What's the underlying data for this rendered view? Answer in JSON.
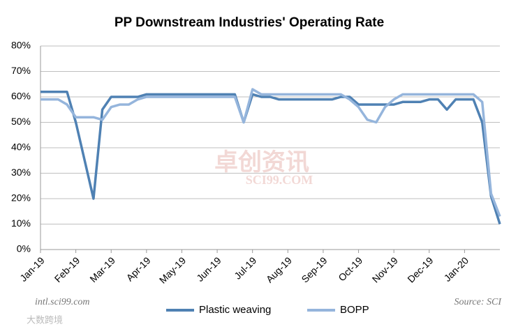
{
  "chart_data": {
    "type": "line",
    "title": "PP Downstream Industries' Operating Rate",
    "categories": [
      "Jan-19",
      null,
      null,
      null,
      "Feb-19",
      null,
      null,
      null,
      "Mar-19",
      null,
      null,
      null,
      "Apr-19",
      null,
      null,
      null,
      "May-19",
      null,
      null,
      null,
      "Jun-19",
      null,
      null,
      null,
      "Jul-19",
      null,
      null,
      null,
      "Aug-19",
      null,
      null,
      null,
      "Sep-19",
      null,
      null,
      null,
      "Oct-19",
      null,
      null,
      null,
      "Nov-19",
      null,
      null,
      null,
      "Dec-19",
      null,
      null,
      null,
      "Jan-20",
      null,
      null,
      null,
      null
    ],
    "series": [
      {
        "name": "Plastic weaving",
        "color": "#4f81b3",
        "values": [
          62,
          62,
          62,
          62,
          50,
          35,
          20,
          55,
          60,
          60,
          60,
          60,
          61,
          61,
          61,
          61,
          61,
          61,
          61,
          61,
          61,
          61,
          61,
          50,
          61,
          60,
          60,
          59,
          59,
          59,
          59,
          59,
          59,
          59,
          60,
          60,
          57,
          57,
          57,
          57,
          57,
          58,
          58,
          58,
          59,
          59,
          55,
          59,
          59,
          59,
          50,
          21,
          10
        ]
      },
      {
        "name": "BOPP",
        "color": "#95b5dc",
        "values": [
          59,
          59,
          59,
          57,
          52,
          52,
          52,
          51,
          56,
          57,
          57,
          59,
          60,
          60,
          60,
          60,
          60,
          60,
          60,
          60,
          60,
          60,
          60,
          50,
          63,
          61,
          61,
          61,
          61,
          61,
          61,
          61,
          61,
          61,
          61,
          59,
          56,
          51,
          50,
          56,
          59,
          61,
          61,
          61,
          61,
          61,
          61,
          61,
          61,
          61,
          58,
          22,
          13
        ]
      }
    ],
    "ylim": [
      0,
      80
    ],
    "yticks": [
      {
        "value": 0,
        "label": "0%"
      },
      {
        "value": 10,
        "label": "10%"
      },
      {
        "value": 20,
        "label": "20%"
      },
      {
        "value": 30,
        "label": "30%"
      },
      {
        "value": 40,
        "label": "40%"
      },
      {
        "value": 50,
        "label": "50%"
      },
      {
        "value": 60,
        "label": "60%"
      },
      {
        "value": 70,
        "label": "70%"
      },
      {
        "value": 80,
        "label": "80%"
      }
    ],
    "grid": true,
    "legend": "bottom",
    "source_left": "intl.sci99.com",
    "source_right": "Source: SCI",
    "watermark": "卓创资讯",
    "watermark_sub": "SCI99.COM",
    "corner_mark": "大数跨境"
  }
}
